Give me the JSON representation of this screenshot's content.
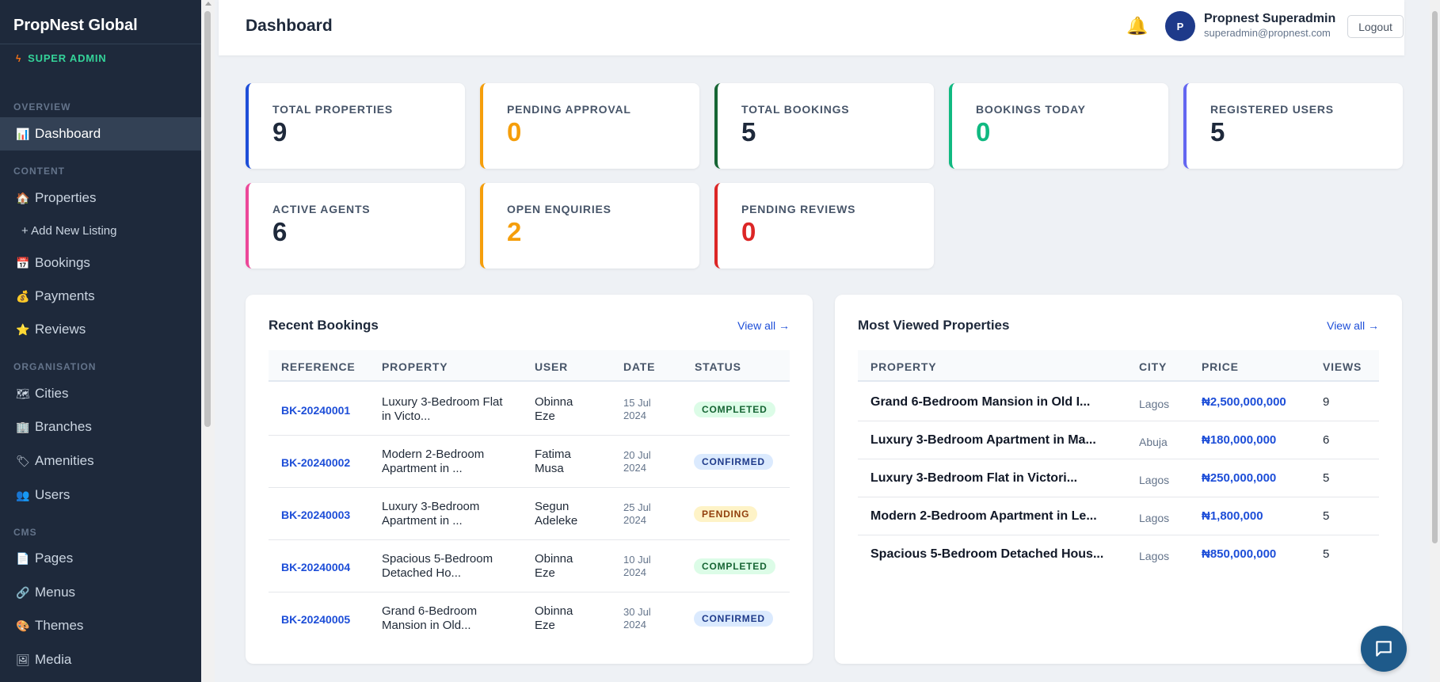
{
  "brand": "PropNest Global",
  "role": "SUPER ADMIN",
  "sidebar": {
    "overview_label": "OVERVIEW",
    "dashboard": {
      "icon": "bar-chart-icon",
      "label": "Dashboard"
    },
    "content_label": "CONTENT",
    "properties": {
      "icon": "house-icon",
      "label": "Properties"
    },
    "add_listing": "+ Add New Listing",
    "bookings": {
      "icon": "calendar-icon",
      "label": "Bookings"
    },
    "payments": {
      "icon": "money-bag-icon",
      "label": "Payments"
    },
    "reviews": {
      "icon": "star-icon",
      "label": "Reviews"
    },
    "organisation_label": "ORGANISATION",
    "cities": {
      "icon": "map-icon",
      "label": "Cities"
    },
    "branches": {
      "icon": "office-building-icon",
      "label": "Branches"
    },
    "amenities": {
      "icon": "tag-icon",
      "label": "Amenities"
    },
    "users": {
      "icon": "users-icon",
      "label": "Users"
    },
    "cms_label": "CMS",
    "pages": {
      "icon": "page-icon",
      "label": "Pages"
    },
    "menus": {
      "icon": "link-icon",
      "label": "Menus"
    },
    "themes": {
      "icon": "palette-icon",
      "label": "Themes"
    },
    "media": {
      "icon": "image-icon",
      "label": "Media"
    }
  },
  "header": {
    "title": "Dashboard",
    "avatar_initial": "P",
    "user_name": "Propnest Superadmin",
    "user_email": "superadmin@propnest.com",
    "logout": "Logout"
  },
  "stats": [
    {
      "label": "TOTAL PROPERTIES",
      "value": "9",
      "color": "#1d4ed8",
      "value_color": "#1e293b"
    },
    {
      "label": "PENDING APPROVAL",
      "value": "0",
      "color": "#f59e0b",
      "value_color": "#f59e0b"
    },
    {
      "label": "TOTAL BOOKINGS",
      "value": "5",
      "color": "#166534",
      "value_color": "#1e293b"
    },
    {
      "label": "BOOKINGS TODAY",
      "value": "0",
      "color": "#10b981",
      "value_color": "#10b981"
    },
    {
      "label": "REGISTERED USERS",
      "value": "5",
      "color": "#6366f1",
      "value_color": "#1e293b"
    },
    {
      "label": "ACTIVE AGENTS",
      "value": "6",
      "color": "#ec4899",
      "value_color": "#1e293b"
    },
    {
      "label": "OPEN ENQUIRIES",
      "value": "2",
      "color": "#f59e0b",
      "value_color": "#f59e0b"
    },
    {
      "label": "PENDING REVIEWS",
      "value": "0",
      "color": "#dc2626",
      "value_color": "#dc2626"
    }
  ],
  "recent_bookings": {
    "title": "Recent Bookings",
    "view_all": "View all →",
    "columns": [
      "REFERENCE",
      "PROPERTY",
      "USER",
      "DATE",
      "STATUS"
    ],
    "rows": [
      {
        "ref": "BK-20240001",
        "prop1": "Luxury 3-Bedroom Flat",
        "prop2": "in Victo...",
        "user1": "Obinna",
        "user2": "Eze",
        "date1": "15 Jul",
        "date2": "2024",
        "status": "COMPLETED"
      },
      {
        "ref": "BK-20240002",
        "prop1": "Modern 2-Bedroom",
        "prop2": "Apartment in ...",
        "user1": "Fatima",
        "user2": "Musa",
        "date1": "20 Jul",
        "date2": "2024",
        "status": "CONFIRMED"
      },
      {
        "ref": "BK-20240003",
        "prop1": "Luxury 3-Bedroom",
        "prop2": "Apartment in ...",
        "user1": "Segun",
        "user2": "Adeleke",
        "date1": "25 Jul",
        "date2": "2024",
        "status": "PENDING"
      },
      {
        "ref": "BK-20240004",
        "prop1": "Spacious 5-Bedroom",
        "prop2": "Detached Ho...",
        "user1": "Obinna",
        "user2": "Eze",
        "date1": "10 Jul",
        "date2": "2024",
        "status": "COMPLETED"
      },
      {
        "ref": "BK-20240005",
        "prop1": "Grand 6-Bedroom",
        "prop2": "Mansion in Old...",
        "user1": "Obinna",
        "user2": "Eze",
        "date1": "30 Jul",
        "date2": "2024",
        "status": "CONFIRMED"
      }
    ]
  },
  "most_viewed": {
    "title": "Most Viewed Properties",
    "view_all": "View all →",
    "columns": [
      "PROPERTY",
      "CITY",
      "PRICE",
      "VIEWS"
    ],
    "rows": [
      {
        "property": "Grand 6-Bedroom Mansion in Old I...",
        "city": "Lagos",
        "price": "₦2,500,000,000",
        "views": "9"
      },
      {
        "property": "Luxury 3-Bedroom Apartment in Ma...",
        "city": "Abuja",
        "price": "₦180,000,000",
        "views": "6"
      },
      {
        "property": "Luxury 3-Bedroom Flat in Victori...",
        "city": "Lagos",
        "price": "₦250,000,000",
        "views": "5"
      },
      {
        "property": "Modern 2-Bedroom Apartment in Le...",
        "city": "Lagos",
        "price": "₦1,800,000",
        "views": "5"
      },
      {
        "property": "Spacious 5-Bedroom Detached Hous...",
        "city": "Lagos",
        "price": "₦850,000,000",
        "views": "5"
      }
    ]
  },
  "chat_icon": "chat-bubble-icon"
}
